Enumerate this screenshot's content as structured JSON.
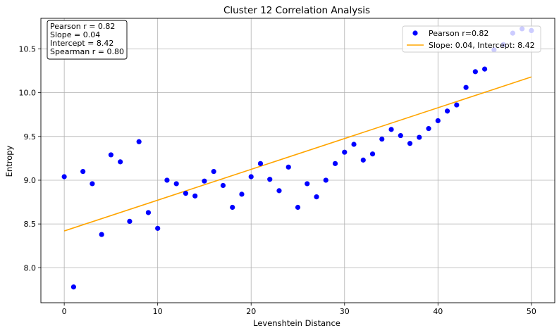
{
  "chart_data": {
    "type": "scatter",
    "title": "Cluster 12 Correlation Analysis",
    "xlabel": "Levenshtein Distance",
    "ylabel": "Entropy",
    "xlim": [
      -2.5,
      52.5
    ],
    "ylim": [
      7.6,
      10.85
    ],
    "x_ticks": [
      0,
      10,
      20,
      30,
      40,
      50
    ],
    "y_ticks": [
      8.0,
      8.5,
      9.0,
      9.5,
      10.0,
      10.5
    ],
    "x_tick_labels": [
      "0",
      "10",
      "20",
      "30",
      "40",
      "50"
    ],
    "y_tick_labels": [
      "8.0",
      "8.5",
      "9.0",
      "9.5",
      "10.0",
      "10.5"
    ],
    "grid": true,
    "legend_position": "top-right",
    "stats_box_position": "top-left",
    "stats_text": [
      "Pearson r = 0.82",
      "Slope = 0.04",
      "Intercept = 8.42",
      "Spearman r = 0.80"
    ],
    "series": [
      {
        "name": "Pearson r=0.82",
        "kind": "scatter",
        "color": "#0000ff",
        "x": [
          0,
          1,
          2,
          3,
          4,
          5,
          6,
          7,
          8,
          9,
          10,
          11,
          12,
          13,
          14,
          15,
          16,
          17,
          18,
          19,
          20,
          21,
          22,
          23,
          24,
          25,
          26,
          27,
          28,
          29,
          30,
          31,
          32,
          33,
          34,
          35,
          36,
          37,
          38,
          39,
          40,
          41,
          42,
          43,
          44,
          45,
          46,
          47,
          48,
          49,
          50
        ],
        "y": [
          9.04,
          7.78,
          9.1,
          8.96,
          8.38,
          9.29,
          9.21,
          8.53,
          9.44,
          8.63,
          8.45,
          9.0,
          8.96,
          8.85,
          8.82,
          8.99,
          9.1,
          8.94,
          8.69,
          8.84,
          9.04,
          9.19,
          9.01,
          8.88,
          9.15,
          8.69,
          8.96,
          8.81,
          9.0,
          9.19,
          9.32,
          9.41,
          9.23,
          9.3,
          9.47,
          9.58,
          9.51,
          9.42,
          9.49,
          9.59,
          9.68,
          9.79,
          9.86,
          10.06,
          10.24,
          10.27,
          10.49,
          10.55,
          10.68,
          10.73,
          10.71
        ]
      },
      {
        "name": "Slope: 0.04, Intercept: 8.42",
        "kind": "line",
        "color": "#ffa500",
        "x": [
          0,
          50
        ],
        "y": [
          8.42,
          10.18
        ]
      }
    ]
  }
}
